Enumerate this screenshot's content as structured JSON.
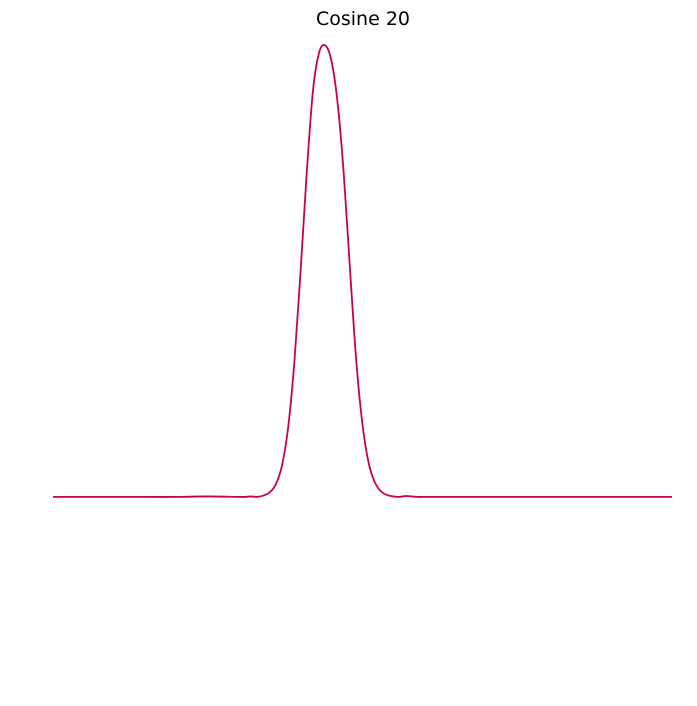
{
  "chart_data": {
    "type": "line",
    "title": "Cosine 20",
    "xlabel": "",
    "ylabel": "",
    "axes_visible": false,
    "grid": false,
    "xlim": [
      -1,
      1
    ],
    "ylim": [
      -0.45,
      1.03
    ],
    "series": [
      {
        "color": "#cc0044",
        "x": [
          -1.0,
          -0.9,
          -0.8,
          -0.7,
          -0.6,
          -0.5,
          -0.4,
          -0.38,
          -0.36,
          -0.34,
          -0.32,
          -0.3,
          -0.28,
          -0.26,
          -0.24,
          -0.22,
          -0.2,
          -0.18,
          -0.16,
          -0.14,
          -0.12,
          -0.1,
          -0.08,
          -0.06,
          -0.04,
          -0.02,
          0.0,
          0.02,
          0.04,
          0.06,
          0.08,
          0.1,
          0.12,
          0.14,
          0.16,
          0.18,
          0.2,
          0.22,
          0.24,
          0.26,
          0.28,
          0.3,
          0.4,
          0.5,
          0.6,
          0.7,
          0.8,
          0.9,
          1.0
        ],
        "y": [
          0.0,
          0.0,
          0.0,
          0.0,
          0.0,
          0.001,
          0.0,
          0.0,
          0.001,
          0.0,
          0.003,
          0.01,
          0.028,
          0.07,
          0.155,
          0.3,
          0.5,
          0.72,
          0.9,
          0.985,
          1.0,
          0.965,
          0.87,
          0.71,
          0.5,
          0.3,
          0.16,
          0.075,
          0.032,
          0.012,
          0.004,
          0.001,
          0.0,
          0.002,
          0.001,
          0.0,
          0.0,
          0.0,
          0.0,
          0.0,
          0.0,
          0.0,
          0.0,
          0.0,
          0.0,
          0.0,
          0.0,
          0.0,
          0.0
        ]
      }
    ]
  }
}
